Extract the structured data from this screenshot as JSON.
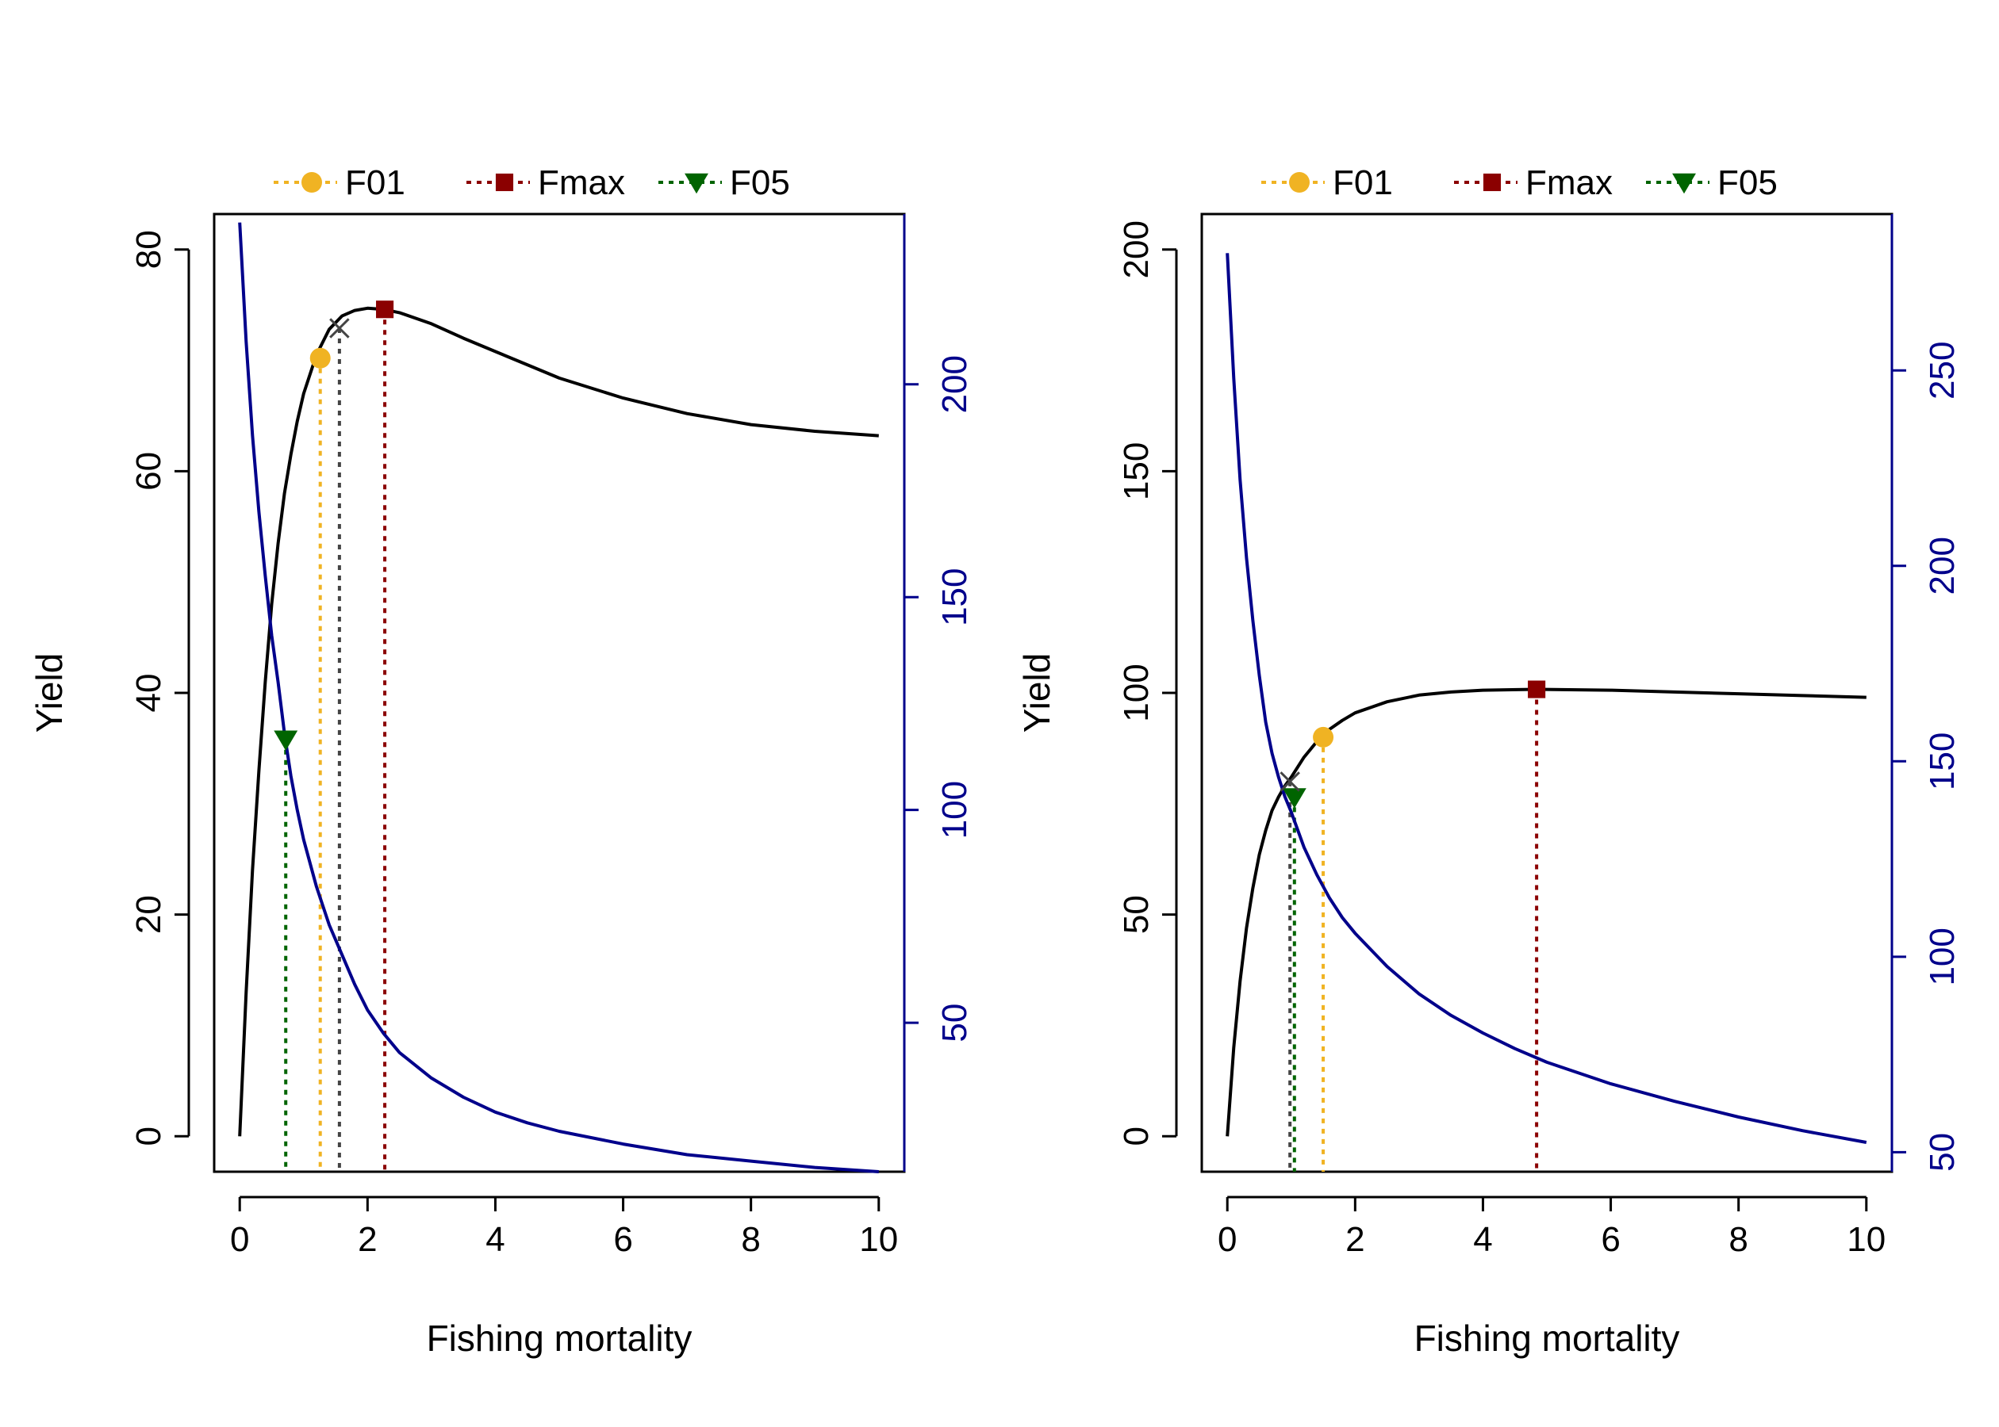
{
  "colors": {
    "yield": "#000000",
    "ssb": "#00008B",
    "F01": "#F0B323",
    "Fmax": "#8B0000",
    "F05": "#006400",
    "cross": "#444444"
  },
  "legend": [
    {
      "key": "F01",
      "label": "F01",
      "marker": "circle"
    },
    {
      "key": "Fmax",
      "label": "Fmax",
      "marker": "square"
    },
    {
      "key": "F05",
      "label": "F05",
      "marker": "triangle-down"
    }
  ],
  "chart_data": [
    {
      "type": "line",
      "xlabel": "Fishing mortality",
      "ylabel": "Yield",
      "xlim": [
        -0.4,
        10.4
      ],
      "ylim": [
        -3.2,
        83.2
      ],
      "y2lim": [
        15,
        240
      ],
      "xticks": [
        0,
        2,
        4,
        6,
        8,
        10
      ],
      "yticks": [
        0,
        20,
        40,
        60,
        80
      ],
      "y2ticks": [
        50,
        100,
        150,
        200
      ],
      "series": [
        {
          "role": "yield",
          "axis": "left",
          "x": [
            0,
            0.1,
            0.2,
            0.3,
            0.4,
            0.5,
            0.6,
            0.7,
            0.8,
            0.9,
            1.0,
            1.2,
            1.4,
            1.6,
            1.8,
            2.0,
            2.25,
            2.5,
            3.0,
            3.5,
            4.0,
            4.5,
            5.0,
            6.0,
            7.0,
            8.0,
            9.0,
            10.0
          ],
          "y": [
            0,
            13,
            24,
            33,
            41,
            48,
            53.5,
            58,
            61.5,
            64.5,
            67,
            70.5,
            72.8,
            74,
            74.5,
            74.7,
            74.6,
            74.3,
            73.3,
            72,
            70.8,
            69.6,
            68.4,
            66.6,
            65.2,
            64.2,
            63.6,
            63.2
          ]
        },
        {
          "role": "ssb",
          "axis": "right",
          "x": [
            0,
            0.1,
            0.2,
            0.3,
            0.4,
            0.5,
            0.6,
            0.7,
            0.8,
            0.9,
            1.0,
            1.2,
            1.4,
            1.6,
            1.8,
            2.0,
            2.25,
            2.5,
            3.0,
            3.5,
            4.0,
            4.5,
            5.0,
            6.0,
            7.0,
            8.0,
            9.0,
            10.0
          ],
          "y": [
            238,
            210,
            188,
            170,
            155,
            141,
            130,
            118,
            108,
            100,
            93,
            82,
            73,
            66,
            59,
            53,
            47.5,
            43,
            37,
            32.5,
            29,
            26.5,
            24.5,
            21.5,
            19,
            17.5,
            16,
            15
          ]
        }
      ],
      "reference_points": [
        {
          "key": "F01",
          "x": 1.26,
          "y": 70.2
        },
        {
          "key": "Fmax",
          "x": 2.27,
          "y": 74.6
        },
        {
          "key": "F05",
          "x": 0.72,
          "y": 35.8
        },
        {
          "key": "cross",
          "x": 1.56,
          "y": 72.9
        }
      ]
    },
    {
      "type": "line",
      "xlabel": "Fishing mortality",
      "ylabel": "Yield",
      "xlim": [
        -0.4,
        10.4
      ],
      "ylim": [
        -8,
        208
      ],
      "y2lim": [
        45,
        290
      ],
      "xticks": [
        0,
        2,
        4,
        6,
        8,
        10
      ],
      "yticks": [
        0,
        50,
        100,
        150,
        200
      ],
      "y2ticks": [
        50,
        100,
        150,
        200,
        250
      ],
      "series": [
        {
          "role": "yield",
          "axis": "left",
          "x": [
            0,
            0.1,
            0.2,
            0.3,
            0.4,
            0.5,
            0.6,
            0.7,
            0.8,
            0.9,
            1.0,
            1.2,
            1.4,
            1.6,
            1.8,
            2.0,
            2.5,
            3.0,
            3.5,
            4.0,
            4.84,
            6.0,
            7.0,
            8.0,
            9.0,
            10.0
          ],
          "y": [
            0,
            20,
            35,
            47,
            56,
            63.5,
            69,
            73.5,
            76.5,
            79,
            81,
            85.5,
            89,
            91.8,
            93.8,
            95.5,
            98,
            99.5,
            100.2,
            100.6,
            100.8,
            100.6,
            100.2,
            99.8,
            99.4,
            99
          ]
        },
        {
          "role": "ssb",
          "axis": "right",
          "x": [
            0,
            0.1,
            0.2,
            0.3,
            0.4,
            0.5,
            0.6,
            0.7,
            0.8,
            0.9,
            1.0,
            1.2,
            1.4,
            1.6,
            1.8,
            2.0,
            2.5,
            3.0,
            3.5,
            4.0,
            4.5,
            5.0,
            6.0,
            7.0,
            8.0,
            9.0,
            10.0
          ],
          "y": [
            280,
            248,
            222,
            202,
            186,
            172,
            160,
            152,
            146,
            141,
            137,
            128,
            121,
            115,
            110,
            106,
            97.5,
            90.5,
            85,
            80.5,
            76.5,
            73,
            67.5,
            63,
            59,
            55.5,
            52.5
          ]
        }
      ],
      "reference_points": [
        {
          "key": "F01",
          "x": 1.5,
          "y": 90
        },
        {
          "key": "Fmax",
          "x": 4.84,
          "y": 100.8
        },
        {
          "key": "F05",
          "x": 1.05,
          "y": 76.5
        },
        {
          "key": "cross",
          "x": 0.98,
          "y": 80
        }
      ]
    }
  ]
}
